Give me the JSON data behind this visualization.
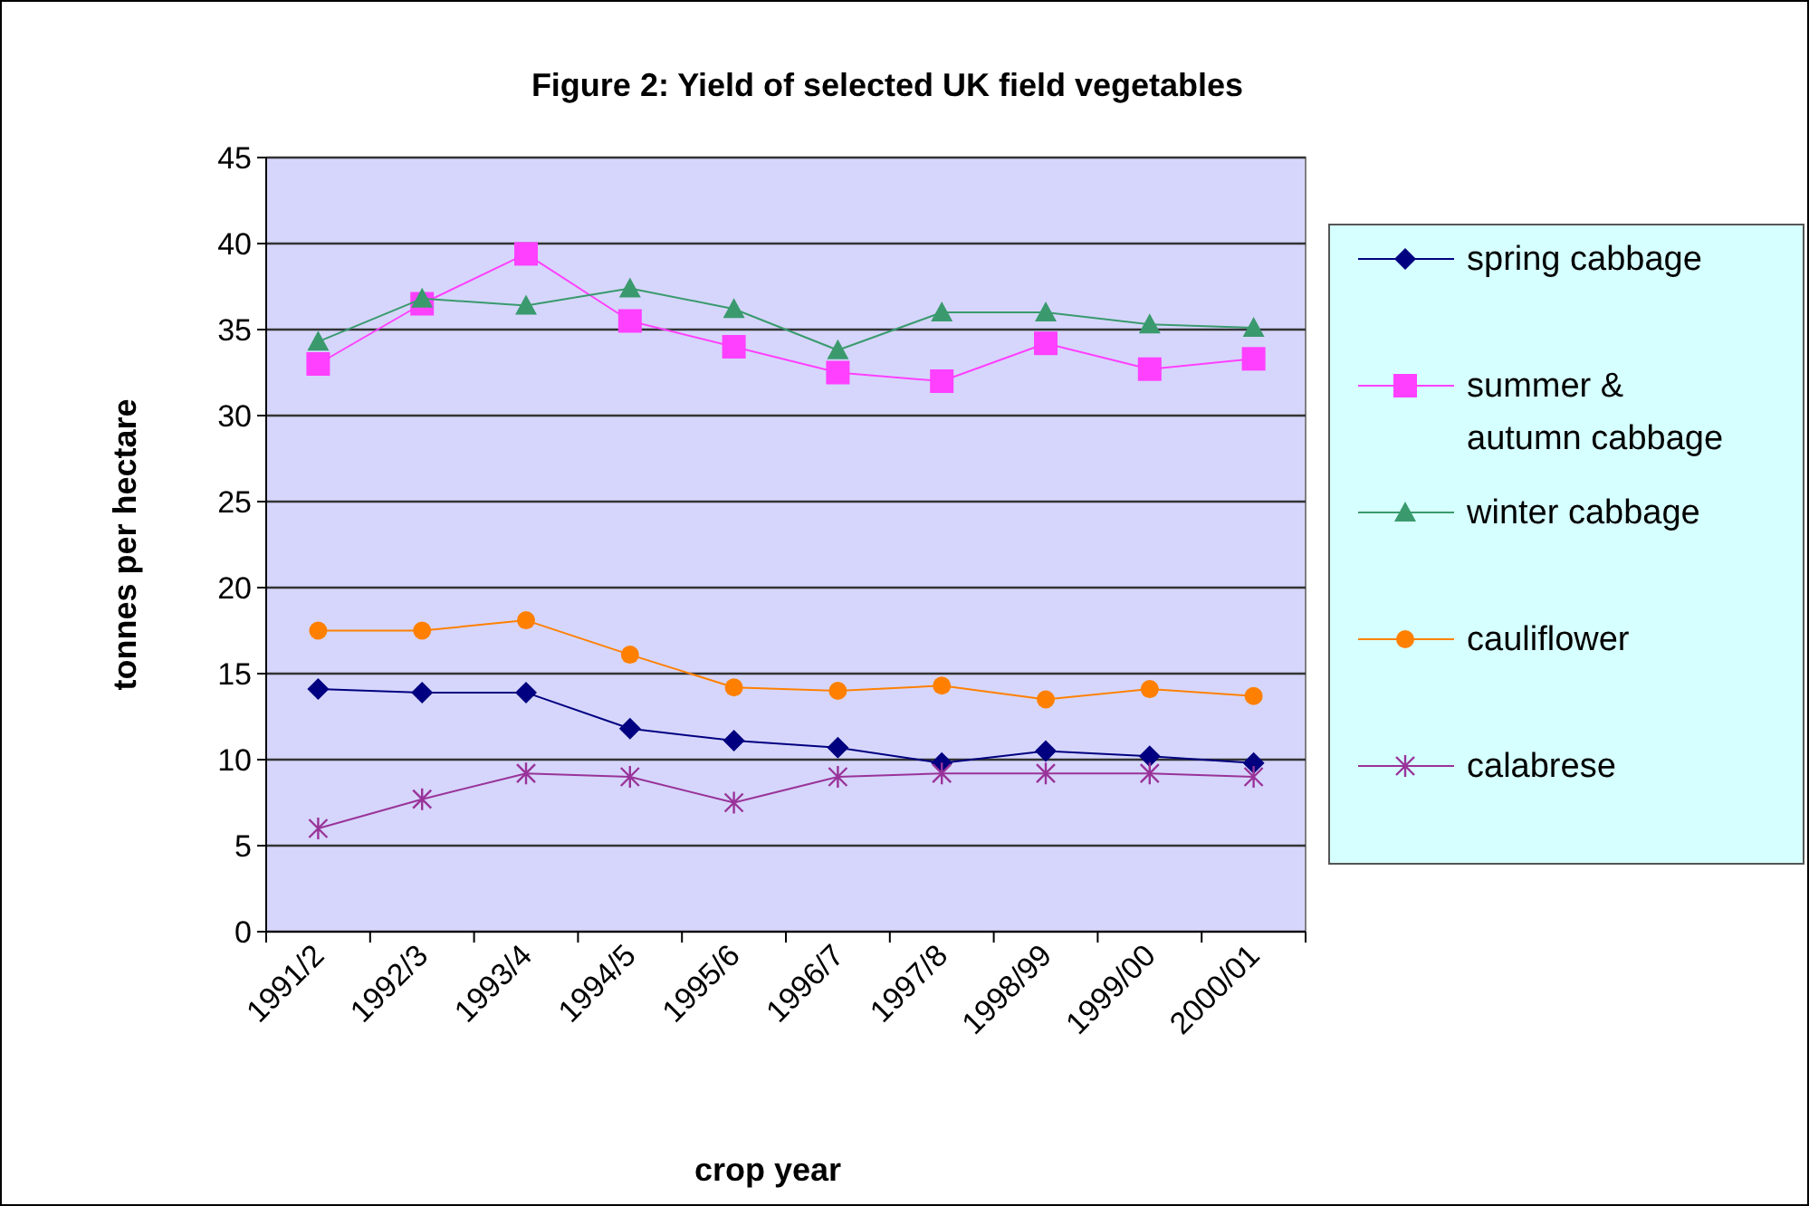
{
  "chart_data": {
    "type": "line",
    "title": "Figure 2: Yield of selected UK field vegetables",
    "xlabel": "crop year",
    "ylabel": "tonnes per hectare",
    "categories": [
      "1991/2",
      "1992/3",
      "1993/4",
      "1994/5",
      "1995/6",
      "1996/7",
      "1997/8",
      "1998/99",
      "1999/00",
      "2000/01"
    ],
    "series": [
      {
        "name": "spring cabbage",
        "color": "#000080",
        "marker": "diamond",
        "values": [
          14.1,
          13.9,
          13.9,
          11.8,
          11.1,
          10.7,
          9.8,
          10.5,
          10.2,
          9.8
        ]
      },
      {
        "name": "summer & autumn cabbage",
        "color": "#ff40ff",
        "marker": "square",
        "values": [
          33.0,
          36.5,
          39.4,
          35.5,
          34.0,
          32.5,
          32.0,
          34.2,
          32.7,
          33.3
        ]
      },
      {
        "name": "winter cabbage",
        "color": "#3a9a6e",
        "marker": "triangle",
        "values": [
          34.3,
          36.8,
          36.4,
          37.4,
          36.2,
          33.8,
          36.0,
          36.0,
          35.3,
          35.1
        ]
      },
      {
        "name": "cauliflower",
        "color": "#ff8000",
        "marker": "circle",
        "values": [
          17.5,
          17.5,
          18.1,
          16.1,
          14.2,
          14.0,
          14.3,
          13.5,
          14.1,
          13.7
        ]
      },
      {
        "name": "calabrese",
        "color": "#993399",
        "marker": "cross",
        "values": [
          6.0,
          7.7,
          9.2,
          9.0,
          7.5,
          9.0,
          9.2,
          9.2,
          9.2,
          9.0
        ]
      }
    ],
    "ylim": [
      0,
      45
    ],
    "yticks": [
      0,
      5,
      10,
      15,
      20,
      25,
      30,
      35,
      40,
      45
    ],
    "grid": "y",
    "legend": "right",
    "line_style": "solid"
  }
}
